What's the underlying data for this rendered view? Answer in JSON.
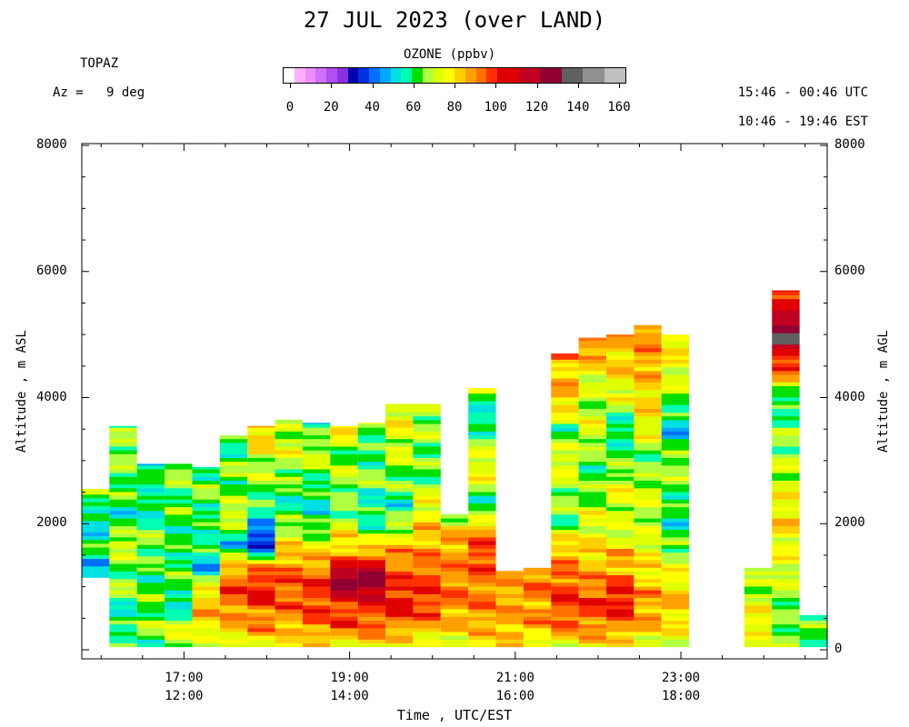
{
  "header": {
    "title": "27 JUL 2023 (over LAND)",
    "station": "TOPAZ",
    "azimuth": "Az =   9 deg",
    "utc_range": "15:46 - 00:46 UTC",
    "est_range": "10:46 - 19:46 EST"
  },
  "colorbar": {
    "title": "OZONE (ppbv)",
    "ticks": [
      "0",
      "20",
      "40",
      "60",
      "80",
      "100",
      "120",
      "140",
      "160"
    ],
    "colors": [
      "#ffffff",
      "#ffb0ff",
      "#f08cff",
      "#d070ff",
      "#b050f0",
      "#8a30e0",
      "#0000b0",
      "#0030e0",
      "#0070ff",
      "#00a8ff",
      "#00e0e0",
      "#00ffb0",
      "#00e000",
      "#b0ff40",
      "#e0ff00",
      "#ffff00",
      "#ffd000",
      "#ffa000",
      "#ff7000",
      "#ff3000",
      "#e00000",
      "#c00020",
      "#900030",
      "#606060",
      "#909090",
      "#c0c0c0"
    ],
    "bins": [
      [
        0,
        5
      ],
      [
        5,
        10
      ],
      [
        10,
        15
      ],
      [
        15,
        20
      ],
      [
        20,
        25
      ],
      [
        25,
        30
      ],
      [
        30,
        35
      ],
      [
        35,
        40
      ],
      [
        40,
        45
      ],
      [
        45,
        50
      ],
      [
        50,
        55
      ],
      [
        55,
        60
      ],
      [
        60,
        65
      ],
      [
        65,
        70
      ],
      [
        70,
        75
      ],
      [
        75,
        80
      ],
      [
        80,
        85
      ],
      [
        85,
        90
      ],
      [
        90,
        95
      ],
      [
        95,
        100
      ],
      [
        100,
        110
      ],
      [
        110,
        120
      ],
      [
        120,
        130
      ],
      [
        130,
        140
      ],
      [
        140,
        150
      ],
      [
        150,
        160
      ]
    ]
  },
  "axes": {
    "y_left_label": "Altitude , m ASL",
    "y_right_label": "Altitude , m AGL",
    "y_left_ticks": [
      "8000",
      "6000",
      "4000",
      "2000"
    ],
    "y_right_ticks": [
      "8000",
      "6000",
      "4000",
      "2000",
      "0"
    ],
    "x_title": "Time , UTC/EST",
    "x_ticks": [
      {
        "utc": "17:00",
        "est": "12:00"
      },
      {
        "utc": "19:00",
        "est": "14:00"
      },
      {
        "utc": "21:00",
        "est": "16:00"
      },
      {
        "utc": "23:00",
        "est": "18:00"
      }
    ]
  },
  "chart_data": {
    "type": "heatmap",
    "title": "27 JUL 2023 (over LAND)",
    "xlabel": "Time , UTC/EST",
    "ylabel": "Altitude , m ASL",
    "x_range_utc": [
      "15:46",
      "00:46"
    ],
    "y_range_m": [
      0,
      8000
    ],
    "value_label": "OZONE (ppbv)",
    "value_range": [
      0,
      160
    ],
    "profiles": [
      {
        "start": "15:46",
        "end": "16:06",
        "bottom": 1150,
        "top": 2550,
        "levels": [
          [
            1150,
            55
          ],
          [
            1400,
            50
          ],
          [
            1700,
            62
          ],
          [
            2000,
            50
          ],
          [
            2300,
            62
          ],
          [
            2550,
            66
          ]
        ]
      },
      {
        "start": "16:06",
        "end": "16:26",
        "bottom": 50,
        "top": 3550,
        "levels": [
          [
            50,
            62
          ],
          [
            300,
            66
          ],
          [
            600,
            52
          ],
          [
            900,
            68
          ],
          [
            1300,
            62
          ],
          [
            1700,
            76
          ],
          [
            2100,
            56
          ],
          [
            2500,
            62
          ],
          [
            3000,
            66
          ],
          [
            3550,
            64
          ]
        ]
      },
      {
        "start": "16:26",
        "end": "16:46",
        "bottom": 50,
        "top": 2950,
        "levels": [
          [
            50,
            62
          ],
          [
            400,
            68
          ],
          [
            800,
            64
          ],
          [
            1200,
            60
          ],
          [
            1700,
            66
          ],
          [
            2200,
            56
          ],
          [
            2600,
            62
          ],
          [
            2950,
            54
          ]
        ]
      },
      {
        "start": "16:46",
        "end": "17:06",
        "bottom": 50,
        "top": 2950,
        "levels": [
          [
            50,
            66
          ],
          [
            400,
            74
          ],
          [
            700,
            48
          ],
          [
            1000,
            66
          ],
          [
            1400,
            62
          ],
          [
            1800,
            58
          ],
          [
            2200,
            66
          ],
          [
            2600,
            62
          ],
          [
            2950,
            72
          ]
        ]
      },
      {
        "start": "17:06",
        "end": "17:26",
        "bottom": 50,
        "top": 2900,
        "levels": [
          [
            50,
            66
          ],
          [
            300,
            78
          ],
          [
            600,
            86
          ],
          [
            900,
            82
          ],
          [
            1300,
            48
          ],
          [
            1700,
            62
          ],
          [
            2100,
            58
          ],
          [
            2500,
            64
          ],
          [
            2900,
            62
          ]
        ]
      },
      {
        "start": "17:26",
        "end": "17:46",
        "bottom": 50,
        "top": 3400,
        "levels": [
          [
            50,
            70
          ],
          [
            300,
            82
          ],
          [
            700,
            92
          ],
          [
            1000,
            96
          ],
          [
            1300,
            86
          ],
          [
            1700,
            50
          ],
          [
            2100,
            76
          ],
          [
            2500,
            62
          ],
          [
            2900,
            66
          ],
          [
            3400,
            56
          ]
        ]
      },
      {
        "start": "17:46",
        "end": "18:06",
        "bottom": 50,
        "top": 3550,
        "levels": [
          [
            50,
            72
          ],
          [
            300,
            86
          ],
          [
            700,
            95
          ],
          [
            1000,
            104
          ],
          [
            1300,
            92
          ],
          [
            1700,
            30
          ],
          [
            2100,
            54
          ],
          [
            2500,
            64
          ],
          [
            3000,
            72
          ],
          [
            3550,
            86
          ]
        ]
      },
      {
        "start": "18:06",
        "end": "18:26",
        "bottom": 50,
        "top": 3650,
        "levels": [
          [
            50,
            74
          ],
          [
            400,
            86
          ],
          [
            700,
            92
          ],
          [
            1100,
            96
          ],
          [
            1500,
            86
          ],
          [
            1900,
            70
          ],
          [
            2300,
            58
          ],
          [
            2800,
            66
          ],
          [
            3200,
            74
          ],
          [
            3650,
            66
          ]
        ]
      },
      {
        "start": "18:26",
        "end": "18:46",
        "bottom": 50,
        "top": 3600,
        "levels": [
          [
            50,
            78
          ],
          [
            400,
            92
          ],
          [
            800,
            98
          ],
          [
            1100,
            96
          ],
          [
            1500,
            84
          ],
          [
            1900,
            62
          ],
          [
            2300,
            56
          ],
          [
            2800,
            64
          ],
          [
            3200,
            72
          ],
          [
            3600,
            54
          ]
        ]
      },
      {
        "start": "18:46",
        "end": "19:06",
        "bottom": 50,
        "top": 3550,
        "levels": [
          [
            50,
            74
          ],
          [
            400,
            96
          ],
          [
            800,
            102
          ],
          [
            1100,
            130
          ],
          [
            1500,
            86
          ],
          [
            1900,
            76
          ],
          [
            2300,
            62
          ],
          [
            2800,
            70
          ],
          [
            3200,
            62
          ],
          [
            3550,
            88
          ]
        ]
      },
      {
        "start": "19:06",
        "end": "19:26",
        "bottom": 50,
        "top": 3600,
        "levels": [
          [
            50,
            80
          ],
          [
            400,
            92
          ],
          [
            800,
            104
          ],
          [
            1100,
            132
          ],
          [
            1500,
            92
          ],
          [
            1900,
            62
          ],
          [
            2300,
            56
          ],
          [
            2800,
            66
          ],
          [
            3200,
            58
          ],
          [
            3600,
            72
          ]
        ]
      },
      {
        "start": "19:26",
        "end": "19:46",
        "bottom": 50,
        "top": 3900,
        "levels": [
          [
            50,
            72
          ],
          [
            400,
            92
          ],
          [
            800,
            104
          ],
          [
            1100,
            96
          ],
          [
            1500,
            90
          ],
          [
            1900,
            72
          ],
          [
            2300,
            58
          ],
          [
            2800,
            66
          ],
          [
            3300,
            74
          ],
          [
            3900,
            76
          ]
        ]
      },
      {
        "start": "19:46",
        "end": "20:06",
        "bottom": 50,
        "top": 3900,
        "levels": [
          [
            50,
            70
          ],
          [
            400,
            86
          ],
          [
            800,
            100
          ],
          [
            1100,
            96
          ],
          [
            1500,
            90
          ],
          [
            1900,
            82
          ],
          [
            2300,
            76
          ],
          [
            2800,
            62
          ],
          [
            3300,
            66
          ],
          [
            3900,
            68
          ]
        ]
      },
      {
        "start": "20:06",
        "end": "20:26",
        "bottom": 50,
        "top": 2150,
        "levels": [
          [
            50,
            72
          ],
          [
            400,
            84
          ],
          [
            800,
            90
          ],
          [
            1100,
            92
          ],
          [
            1500,
            88
          ],
          [
            1800,
            86
          ],
          [
            2150,
            66
          ]
        ]
      },
      {
        "start": "20:26",
        "end": "20:46",
        "bottom": 50,
        "top": 4150,
        "levels": [
          [
            50,
            74
          ],
          [
            400,
            86
          ],
          [
            800,
            92
          ],
          [
            1100,
            90
          ],
          [
            1500,
            100
          ],
          [
            1900,
            88
          ],
          [
            2300,
            56
          ],
          [
            2800,
            78
          ],
          [
            3300,
            66
          ],
          [
            3700,
            52
          ],
          [
            4150,
            70
          ]
        ]
      },
      {
        "start": "20:46",
        "end": "21:06",
        "bottom": 50,
        "top": 1250,
        "levels": [
          [
            50,
            80
          ],
          [
            400,
            86
          ],
          [
            800,
            88
          ],
          [
            1250,
            86
          ]
        ]
      },
      {
        "start": "21:06",
        "end": "21:26",
        "bottom": 50,
        "top": 1300,
        "levels": [
          [
            50,
            74
          ],
          [
            400,
            86
          ],
          [
            800,
            90
          ],
          [
            1300,
            92
          ]
        ]
      },
      {
        "start": "21:26",
        "end": "21:46",
        "bottom": 50,
        "top": 4700,
        "levels": [
          [
            50,
            74
          ],
          [
            400,
            92
          ],
          [
            800,
            100
          ],
          [
            1200,
            92
          ],
          [
            1600,
            86
          ],
          [
            2000,
            62
          ],
          [
            2500,
            66
          ],
          [
            3000,
            76
          ],
          [
            3500,
            62
          ],
          [
            4000,
            86
          ],
          [
            4400,
            82
          ],
          [
            4700,
            90
          ]
        ]
      },
      {
        "start": "21:46",
        "end": "22:06",
        "bottom": 50,
        "top": 4950,
        "levels": [
          [
            50,
            76
          ],
          [
            400,
            92
          ],
          [
            800,
            96
          ],
          [
            1200,
            86
          ],
          [
            1600,
            80
          ],
          [
            2000,
            74
          ],
          [
            2500,
            66
          ],
          [
            3000,
            62
          ],
          [
            3500,
            74
          ],
          [
            4000,
            66
          ],
          [
            4500,
            80
          ],
          [
            4950,
            94
          ]
        ]
      },
      {
        "start": "22:06",
        "end": "22:26",
        "bottom": 50,
        "top": 5000,
        "levels": [
          [
            50,
            74
          ],
          [
            400,
            92
          ],
          [
            800,
            104
          ],
          [
            1200,
            90
          ],
          [
            1600,
            82
          ],
          [
            2000,
            68
          ],
          [
            2500,
            76
          ],
          [
            3000,
            64
          ],
          [
            3500,
            56
          ],
          [
            4000,
            74
          ],
          [
            4500,
            82
          ],
          [
            5000,
            86
          ]
        ]
      },
      {
        "start": "22:26",
        "end": "22:46",
        "bottom": 50,
        "top": 5150,
        "levels": [
          [
            50,
            70
          ],
          [
            400,
            86
          ],
          [
            800,
            88
          ],
          [
            1200,
            80
          ],
          [
            1600,
            76
          ],
          [
            2000,
            68
          ],
          [
            2500,
            72
          ],
          [
            3000,
            62
          ],
          [
            3500,
            76
          ],
          [
            4000,
            80
          ],
          [
            4500,
            86
          ],
          [
            5150,
            92
          ]
        ]
      },
      {
        "start": "22:46",
        "end": "23:06",
        "bottom": 50,
        "top": 5000,
        "levels": [
          [
            50,
            68
          ],
          [
            400,
            80
          ],
          [
            800,
            84
          ],
          [
            1200,
            76
          ],
          [
            1600,
            66
          ],
          [
            2000,
            56
          ],
          [
            2500,
            64
          ],
          [
            3000,
            70
          ],
          [
            3500,
            50
          ],
          [
            4000,
            66
          ],
          [
            4500,
            76
          ],
          [
            5000,
            80
          ]
        ]
      },
      {
        "start": "23:46",
        "end": "24:06",
        "bottom": 50,
        "top": 1300,
        "levels": [
          [
            50,
            68
          ],
          [
            400,
            80
          ],
          [
            800,
            72
          ],
          [
            1300,
            66
          ]
        ]
      },
      {
        "start": "24:06",
        "end": "24:26",
        "bottom": 50,
        "top": 5700,
        "levels": [
          [
            50,
            68
          ],
          [
            500,
            62
          ],
          [
            1000,
            70
          ],
          [
            1500,
            76
          ],
          [
            2000,
            80
          ],
          [
            2500,
            74
          ],
          [
            3000,
            68
          ],
          [
            3500,
            66
          ],
          [
            4000,
            56
          ],
          [
            4400,
            92
          ],
          [
            4700,
            104
          ],
          [
            5000,
            136
          ],
          [
            5300,
            110
          ],
          [
            5700,
            100
          ]
        ]
      },
      {
        "start": "24:26",
        "end": "24:46",
        "bottom": 50,
        "top": 550,
        "levels": [
          [
            50,
            66
          ],
          [
            300,
            64
          ],
          [
            550,
            60
          ]
        ]
      }
    ]
  }
}
